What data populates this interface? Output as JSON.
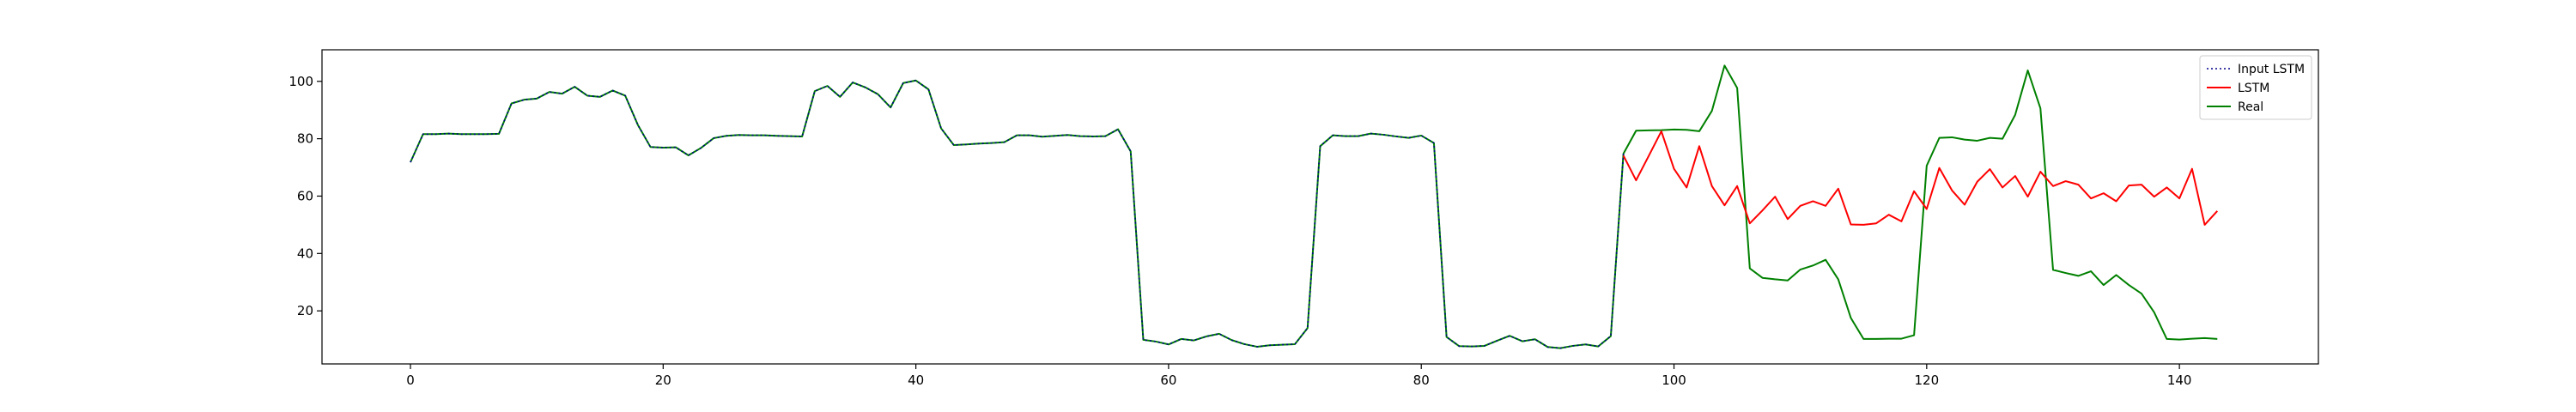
{
  "chart_data": {
    "type": "line",
    "title": "",
    "xlabel": "",
    "ylabel": "",
    "xlim": [
      -7,
      151
    ],
    "ylim": [
      1.5,
      111
    ],
    "xticks": [
      0,
      20,
      40,
      60,
      80,
      100,
      120,
      140
    ],
    "yticks": [
      20,
      40,
      60,
      80,
      100
    ],
    "legend_position": "top-right",
    "series": [
      {
        "name": "Input LSTM",
        "color": "#00008b",
        "style": "dotted",
        "x": [
          0,
          1,
          2,
          3,
          4,
          5,
          6,
          7,
          8,
          9,
          10,
          11,
          12,
          13,
          14,
          15,
          16,
          17,
          18,
          19,
          20,
          21,
          22,
          23,
          24,
          25,
          26,
          27,
          28,
          29,
          30,
          31,
          32,
          33,
          34,
          35,
          36,
          37,
          38,
          39,
          40,
          41,
          42,
          43,
          44,
          45,
          46,
          47,
          48,
          49,
          50,
          51,
          52,
          53,
          54,
          55,
          56,
          57,
          58,
          59,
          60,
          61,
          62,
          63,
          64,
          65,
          66,
          67,
          68,
          69,
          70,
          71,
          72,
          73,
          74,
          75,
          76,
          77,
          78,
          79,
          80,
          81,
          82,
          83,
          84,
          85,
          86,
          87,
          88,
          89,
          90,
          91,
          92,
          93,
          94,
          95,
          96
        ],
        "values": [
          71.8,
          81.6,
          81.6,
          81.8,
          81.6,
          81.6,
          81.6,
          81.7,
          92.3,
          93.6,
          94.0,
          96.3,
          95.7,
          98.1,
          95.0,
          94.6,
          96.8,
          95.0,
          84.8,
          77.1,
          76.9,
          77.0,
          74.2,
          76.8,
          80.2,
          81.0,
          81.3,
          81.2,
          81.2,
          81.0,
          80.9,
          80.8,
          96.6,
          98.4,
          94.6,
          99.6,
          97.9,
          95.5,
          90.9,
          99.4,
          100.3,
          97.2,
          83.6,
          77.8,
          78.0,
          78.3,
          78.5,
          78.8,
          81.2,
          81.2,
          80.7,
          81.0,
          81.3,
          80.9,
          80.8,
          80.9,
          83.3,
          75.6,
          9.9,
          9.3,
          8.3,
          10.2,
          9.7,
          11.1,
          12.0,
          9.8,
          8.4,
          7.5,
          8.0,
          8.2,
          8.4,
          14.0,
          77.4,
          81.2,
          80.9,
          80.9,
          81.8,
          81.4,
          80.8,
          80.3,
          81.1,
          78.5,
          10.9,
          7.7,
          7.6,
          7.8,
          9.6,
          11.3,
          9.4,
          10.1,
          7.4,
          7.0,
          7.8,
          8.3,
          7.6,
          11.2,
          74.8
        ]
      },
      {
        "name": "LSTM",
        "color": "#ff0000",
        "style": "solid",
        "x": [
          96,
          97,
          98,
          99,
          100,
          101,
          102,
          103,
          104,
          105,
          106,
          107,
          108,
          109,
          110,
          111,
          112,
          113,
          114,
          115,
          116,
          117,
          118,
          119,
          120,
          121,
          122,
          123,
          124,
          125,
          126,
          127,
          128,
          129,
          130,
          131,
          132,
          133,
          134,
          135,
          136,
          137,
          138,
          139,
          140,
          141,
          142,
          143
        ],
        "values": [
          74.1,
          65.5,
          74.0,
          82.6,
          69.5,
          63.0,
          77.4,
          63.5,
          56.8,
          63.5,
          50.5,
          55.0,
          59.8,
          52.0,
          56.6,
          58.2,
          56.6,
          62.6,
          50.1,
          50.0,
          50.5,
          53.5,
          51.2,
          61.7,
          55.5,
          69.8,
          62.0,
          57.0,
          65.0,
          69.4,
          63.0,
          67.0,
          59.8,
          68.5,
          63.5,
          65.2,
          64.0,
          59.2,
          61.0,
          58.2,
          63.7,
          64.0,
          59.8,
          63.0,
          59.2,
          69.5,
          50.0,
          54.8
        ]
      },
      {
        "name": "Real",
        "color": "#008000",
        "style": "solid",
        "x": [
          0,
          1,
          2,
          3,
          4,
          5,
          6,
          7,
          8,
          9,
          10,
          11,
          12,
          13,
          14,
          15,
          16,
          17,
          18,
          19,
          20,
          21,
          22,
          23,
          24,
          25,
          26,
          27,
          28,
          29,
          30,
          31,
          32,
          33,
          34,
          35,
          36,
          37,
          38,
          39,
          40,
          41,
          42,
          43,
          44,
          45,
          46,
          47,
          48,
          49,
          50,
          51,
          52,
          53,
          54,
          55,
          56,
          57,
          58,
          59,
          60,
          61,
          62,
          63,
          64,
          65,
          66,
          67,
          68,
          69,
          70,
          71,
          72,
          73,
          74,
          75,
          76,
          77,
          78,
          79,
          80,
          81,
          82,
          83,
          84,
          85,
          86,
          87,
          88,
          89,
          90,
          91,
          92,
          93,
          94,
          95,
          96,
          97,
          98,
          99,
          100,
          101,
          102,
          103,
          104,
          105,
          106,
          107,
          108,
          109,
          110,
          111,
          112,
          113,
          114,
          115,
          116,
          117,
          118,
          119,
          120,
          121,
          122,
          123,
          124,
          125,
          126,
          127,
          128,
          129,
          130,
          131,
          132,
          133,
          134,
          135,
          136,
          137,
          138,
          139,
          140,
          141,
          142,
          143
        ],
        "values": [
          71.8,
          81.6,
          81.6,
          81.8,
          81.6,
          81.6,
          81.6,
          81.7,
          92.3,
          93.6,
          94.0,
          96.3,
          95.7,
          98.1,
          95.0,
          94.6,
          96.8,
          95.0,
          84.8,
          77.1,
          76.9,
          77.0,
          74.2,
          76.8,
          80.2,
          81.0,
          81.3,
          81.2,
          81.2,
          81.0,
          80.9,
          80.8,
          96.6,
          98.4,
          94.6,
          99.6,
          97.9,
          95.5,
          90.9,
          99.4,
          100.3,
          97.2,
          83.6,
          77.8,
          78.0,
          78.3,
          78.5,
          78.8,
          81.2,
          81.2,
          80.7,
          81.0,
          81.3,
          80.9,
          80.8,
          80.9,
          83.3,
          75.6,
          9.9,
          9.3,
          8.3,
          10.2,
          9.7,
          11.1,
          12.0,
          9.8,
          8.4,
          7.5,
          8.0,
          8.2,
          8.4,
          14.0,
          77.4,
          81.2,
          80.9,
          80.9,
          81.8,
          81.4,
          80.8,
          80.3,
          81.1,
          78.5,
          10.9,
          7.7,
          7.6,
          7.8,
          9.6,
          11.3,
          9.4,
          10.1,
          7.4,
          7.0,
          7.8,
          8.3,
          7.6,
          11.2,
          74.8,
          82.8,
          82.9,
          83.0,
          83.2,
          83.1,
          82.6,
          89.7,
          105.5,
          97.7,
          34.8,
          31.5,
          31.0,
          30.6,
          34.4,
          35.8,
          37.8,
          31.0,
          17.5,
          10.2,
          10.2,
          10.3,
          10.3,
          11.5,
          70.6,
          80.3,
          80.5,
          79.7,
          79.3,
          80.3,
          80.0,
          88.3,
          103.8,
          90.6,
          34.3,
          33.2,
          32.2,
          33.8,
          29.0,
          32.5,
          29.0,
          26.0,
          19.5,
          10.2,
          10.0,
          10.3,
          10.5,
          10.2
        ]
      }
    ]
  }
}
